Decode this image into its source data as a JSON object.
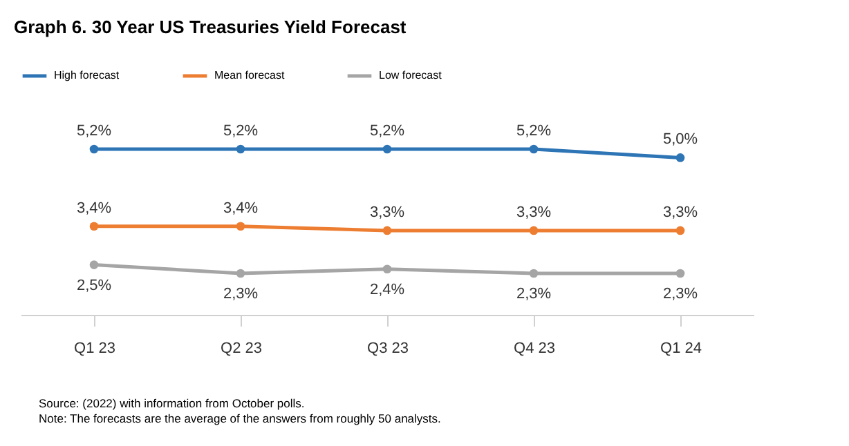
{
  "chart_data": {
    "type": "line",
    "title": "Graph 6. 30 Year US Treasuries Yield Forecast",
    "categories": [
      "Q1 23",
      "Q2 23",
      "Q3 23",
      "Q4 23",
      "Q1 24"
    ],
    "series": [
      {
        "name": "High forecast",
        "color": "#2e75b6",
        "values": [
          5.2,
          5.2,
          5.2,
          5.2,
          5.0
        ],
        "value_labels": [
          "5,2%",
          "5,2%",
          "5,2%",
          "5,2%",
          "5,0%"
        ]
      },
      {
        "name": "Mean forecast",
        "color": "#ed7d31",
        "values": [
          3.4,
          3.4,
          3.3,
          3.3,
          3.3
        ],
        "value_labels": [
          "3,4%",
          "3,4%",
          "3,3%",
          "3,3%",
          "3,3%"
        ]
      },
      {
        "name": "Low forecast",
        "color": "#a5a5a5",
        "values": [
          2.5,
          2.3,
          2.4,
          2.3,
          2.3
        ],
        "value_labels": [
          "2,5%",
          "2,3%",
          "2,4%",
          "2,3%",
          "2,3%"
        ]
      }
    ],
    "legend": "top",
    "marker": "circle",
    "line_style": "solid",
    "grid": false,
    "annotations": [
      "Source: (2022) with information from October polls.",
      "Note: The forecasts are the average of the answers from roughly 50 analysts."
    ]
  }
}
